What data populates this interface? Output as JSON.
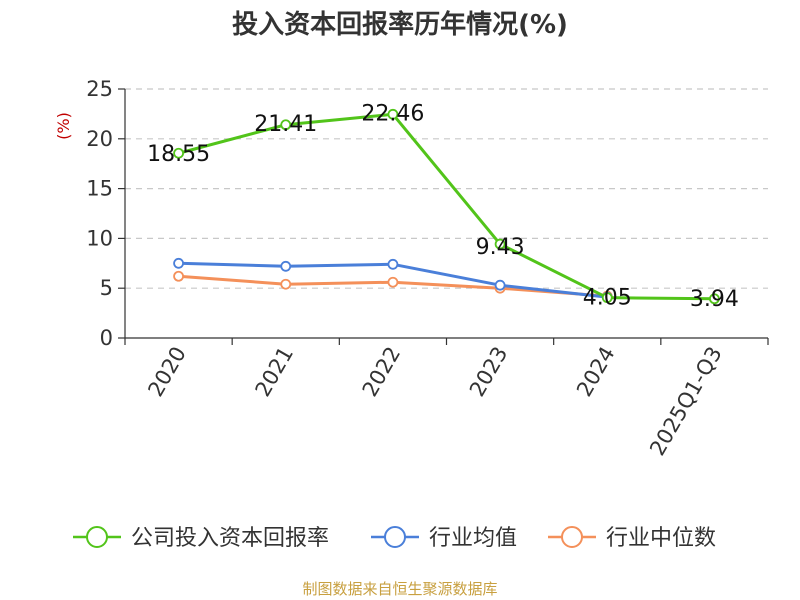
{
  "chart_data": {
    "type": "line",
    "title": "投入资本回报率历年情况(%)",
    "ylabel": "(%)",
    "categories": [
      "2020",
      "2021",
      "2022",
      "2023",
      "2024",
      "2025Q1-Q3"
    ],
    "ylim": [
      0,
      25
    ],
    "yticks": [
      0,
      5,
      10,
      15,
      20,
      25
    ],
    "grid": true,
    "legend_position": "bottom",
    "series": [
      {
        "name": "公司投入资本回报率",
        "color": "#52c41a",
        "values": [
          18.55,
          21.41,
          22.46,
          9.43,
          4.05,
          3.94
        ],
        "labels": [
          "18.55",
          "21.41",
          "22.46",
          "9.43",
          "4.05",
          "3.94"
        ]
      },
      {
        "name": "行业均值",
        "color": "#4a7fd9",
        "values": [
          7.5,
          7.2,
          7.4,
          5.3,
          4.1,
          null
        ],
        "labels": []
      },
      {
        "name": "行业中位数",
        "color": "#f4905a",
        "values": [
          6.2,
          5.4,
          5.6,
          5.0,
          4.2,
          null
        ],
        "labels": []
      }
    ]
  },
  "source_text": "制图数据来自恒生聚源数据库"
}
